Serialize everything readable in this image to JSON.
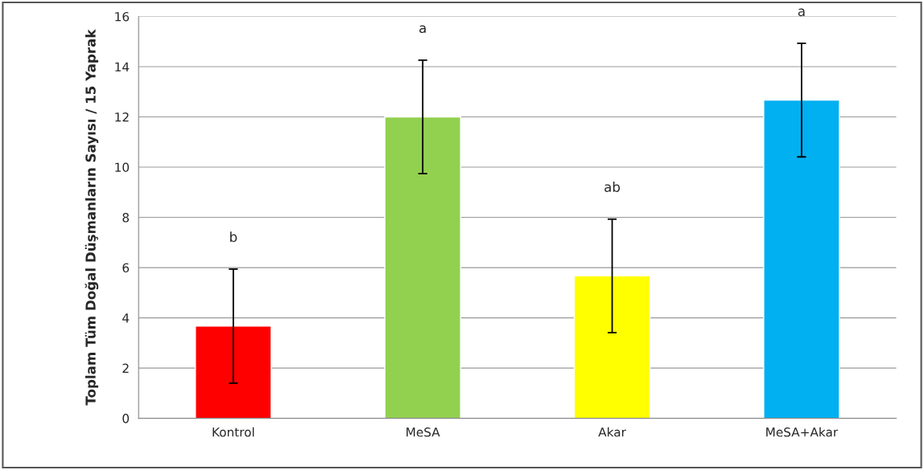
{
  "chart_data": {
    "type": "bar",
    "ylabel": "Toplam Tüm Doğal Düşmanların Sayısı / 15 Yaprak",
    "categories": [
      "Kontrol",
      "MeSA",
      "Akar",
      "MeSA+Akar"
    ],
    "values": [
      3.67,
      12.0,
      5.67,
      12.67
    ],
    "errors": [
      2.27,
      2.26,
      2.26,
      2.26
    ],
    "colors": [
      "#ff0000",
      "#92d050",
      "#ffff00",
      "#00b0f0"
    ],
    "ylim": [
      0,
      16
    ],
    "yticks": [
      0,
      2,
      4,
      6,
      8,
      10,
      12,
      14,
      16
    ],
    "grid": "y",
    "annotations": [
      "b",
      "a",
      "ab",
      "a"
    ]
  }
}
